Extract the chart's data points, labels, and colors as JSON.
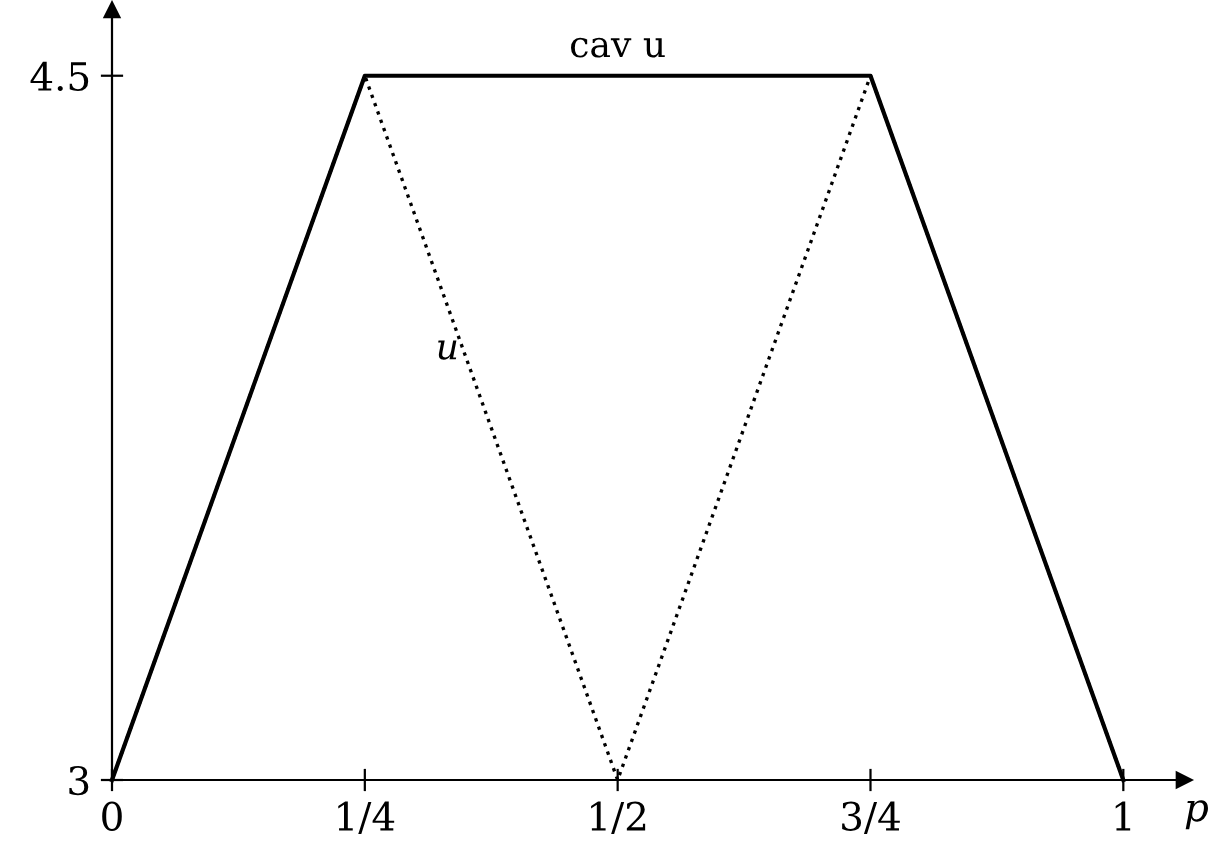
{
  "chart_data": {
    "type": "line",
    "xlabel": "p",
    "series": [
      {
        "name": "cav u",
        "color": "#000000",
        "line_style": "solid",
        "x": [
          0,
          0.25,
          0.75,
          1
        ],
        "values": [
          3,
          4.5,
          4.5,
          3
        ]
      },
      {
        "name": "u",
        "color": "#000000",
        "line_style": "dotted",
        "x": [
          0,
          0.25,
          0.5,
          0.75,
          1
        ],
        "values": [
          3,
          4.5,
          3,
          4.5,
          3
        ]
      }
    ],
    "xlim": [
      0,
      1.06
    ],
    "ylim": [
      3,
      4.64
    ],
    "xticks": [
      0,
      {
        "value": 0.25,
        "label": "1/4"
      },
      {
        "value": 0.5,
        "label": "1/2"
      },
      {
        "value": 0.75,
        "label": "3/4"
      },
      1
    ],
    "yticks": [
      3,
      4.5
    ],
    "grid": false,
    "legend": false,
    "marker": "none"
  }
}
